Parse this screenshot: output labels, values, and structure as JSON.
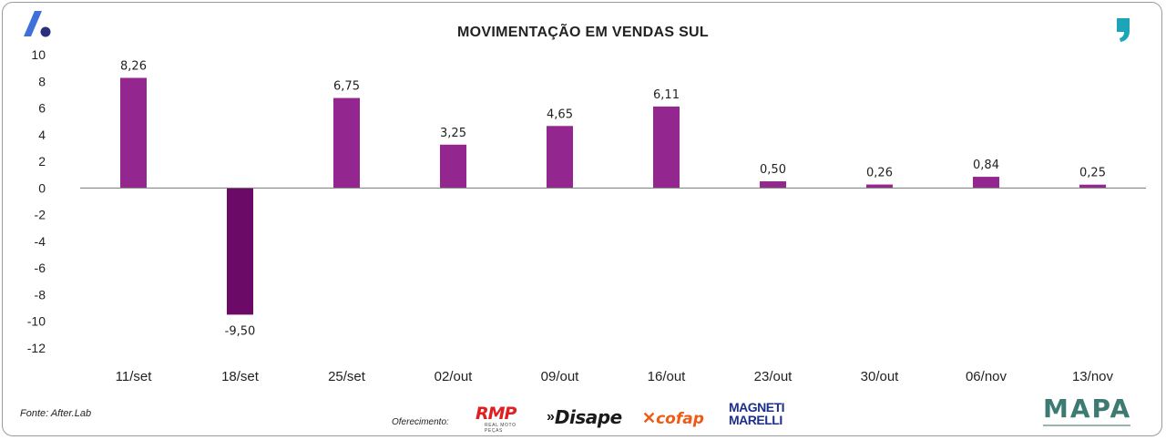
{
  "chart_data": {
    "type": "bar",
    "title": "MOVIMENTAÇÃO EM VENDAS SUL",
    "categories": [
      "11/set",
      "18/set",
      "25/set",
      "02/out",
      "09/out",
      "16/out",
      "23/out",
      "30/out",
      "06/nov",
      "13/nov"
    ],
    "values": [
      8.26,
      -9.5,
      6.75,
      3.25,
      4.65,
      6.11,
      0.5,
      0.26,
      0.84,
      0.25
    ],
    "value_labels": [
      "8,26",
      "-9,50",
      "6,75",
      "3,25",
      "4,65",
      "6,11",
      "0,50",
      "0,26",
      "0,84",
      "0,25"
    ],
    "yticks": [
      "10",
      "8",
      "6",
      "4",
      "2",
      "0",
      "-2",
      "-4",
      "-6",
      "-8",
      "-10",
      "-12"
    ],
    "ylim": [
      -12,
      10
    ],
    "xlabel": "",
    "ylabel": "",
    "grid": false,
    "colors": {
      "positive": "#93278f",
      "negative": "#6b0a67"
    }
  },
  "footer": {
    "source": "Fonte: After.Lab",
    "sponsor_label": "Oferecimento:",
    "sponsors": [
      "RMP",
      "Disape",
      "cofap",
      "MAGNETI MARELLI"
    ],
    "sponsor_tagline": "REAL MOTO PEÇAS",
    "org_logo": "MAPA"
  },
  "icons": {
    "brand": "a-logo-icon",
    "quote": "quote-icon"
  }
}
